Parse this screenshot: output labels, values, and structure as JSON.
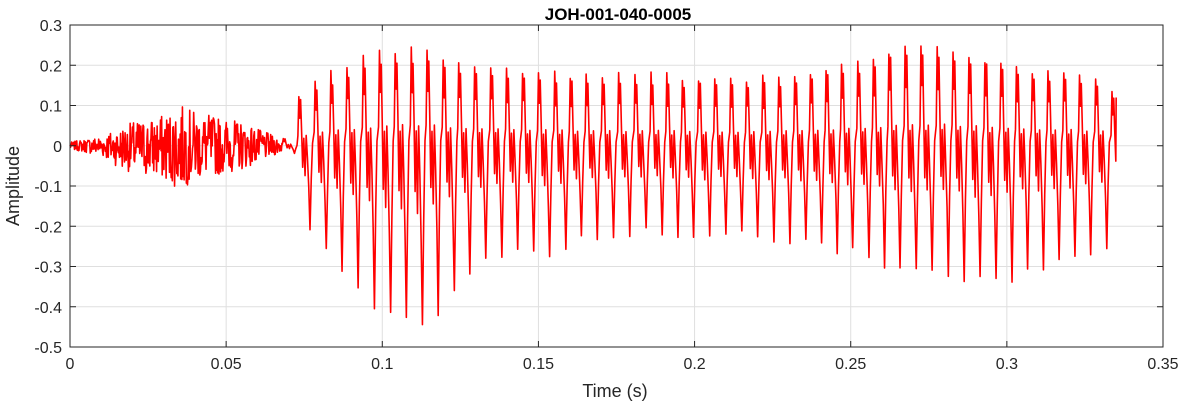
{
  "chart_data": {
    "type": "line",
    "title": "JOH-001-040-0005",
    "xlabel": "Time (s)",
    "ylabel": "Amplitude",
    "xlim": [
      0,
      0.35
    ],
    "ylim": [
      -0.5,
      0.3
    ],
    "xticks": [
      0,
      0.05,
      0.1,
      0.15,
      0.2,
      0.25,
      0.3,
      0.35
    ],
    "xtick_labels": [
      "0",
      "0.05",
      "0.1",
      "0.15",
      "0.2",
      "0.25",
      "0.3",
      "0.35"
    ],
    "yticks": [
      0.3,
      0.2,
      0.1,
      0,
      -0.1,
      -0.2,
      -0.3,
      -0.4,
      -0.5
    ],
    "ytick_labels": [
      "0.3",
      "0.2",
      "0.1",
      "0",
      "-0.1",
      "-0.2",
      "-0.3",
      "-0.4",
      "-0.5"
    ],
    "grid": true,
    "series": [
      {
        "color": "#ff0000",
        "x": [
          0,
          0.005,
          0.01,
          0.015,
          0.02,
          0.025,
          0.03,
          0.035,
          0.04,
          0.045,
          0.05,
          0.055,
          0.06,
          0.065,
          0.068,
          0.07,
          0.072,
          0.075,
          0.08,
          0.085,
          0.09,
          0.095,
          0.1,
          0.105,
          0.11,
          0.115,
          0.12,
          0.125,
          0.13,
          0.14,
          0.15,
          0.16,
          0.17,
          0.18,
          0.19,
          0.2,
          0.21,
          0.22,
          0.23,
          0.24,
          0.25,
          0.26,
          0.27,
          0.28,
          0.29,
          0.3,
          0.31,
          0.32,
          0.33,
          0.335
        ],
        "envelope_max": [
          0.01,
          0.02,
          0.03,
          0.05,
          0.07,
          0.08,
          0.09,
          0.12,
          0.1,
          0.09,
          0.08,
          0.07,
          0.05,
          0.03,
          0.02,
          0.1,
          0.12,
          0.16,
          0.18,
          0.2,
          0.22,
          0.24,
          0.25,
          0.26,
          0.26,
          0.25,
          0.23,
          0.22,
          0.22,
          0.21,
          0.2,
          0.19,
          0.19,
          0.19,
          0.19,
          0.18,
          0.18,
          0.18,
          0.19,
          0.2,
          0.22,
          0.25,
          0.27,
          0.26,
          0.24,
          0.22,
          0.2,
          0.2,
          0.18,
          0.12
        ],
        "envelope_min": [
          -0.01,
          -0.02,
          -0.03,
          -0.06,
          -0.08,
          -0.09,
          -0.1,
          -0.13,
          -0.1,
          -0.09,
          -0.08,
          -0.07,
          -0.05,
          -0.03,
          -0.02,
          -0.16,
          -0.2,
          -0.25,
          -0.3,
          -0.33,
          -0.38,
          -0.42,
          -0.47,
          -0.45,
          -0.48,
          -0.42,
          -0.38,
          -0.33,
          -0.3,
          -0.26,
          -0.3,
          -0.24,
          -0.24,
          -0.22,
          -0.23,
          -0.24,
          -0.23,
          -0.25,
          -0.24,
          -0.27,
          -0.28,
          -0.32,
          -0.32,
          -0.33,
          -0.37,
          -0.33,
          -0.31,
          -0.3,
          -0.25,
          -0.1
        ]
      }
    ]
  }
}
